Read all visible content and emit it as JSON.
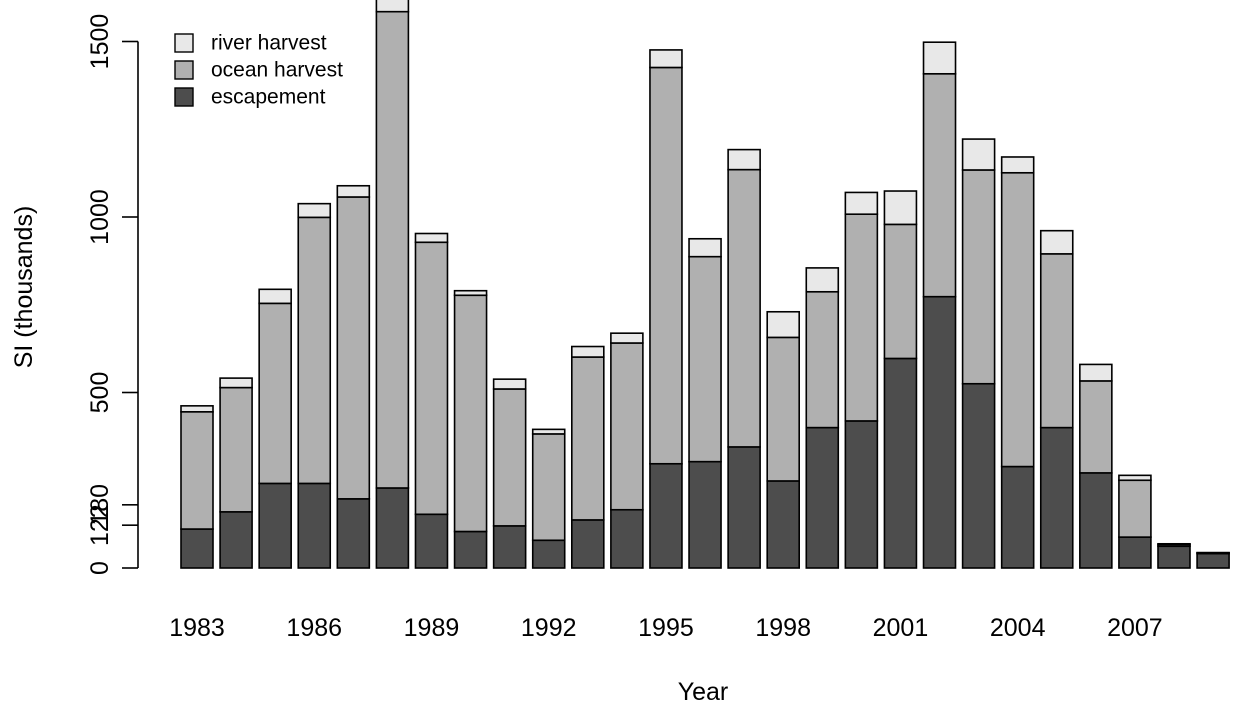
{
  "chart_data": {
    "type": "bar",
    "stacked": true,
    "x": [
      1983,
      1984,
      1985,
      1986,
      1987,
      1988,
      1989,
      1990,
      1991,
      1992,
      1993,
      1994,
      1995,
      1996,
      1997,
      1998,
      1999,
      2000,
      2001,
      2002,
      2003,
      2004,
      2005,
      2006,
      2007,
      2008,
      2009
    ],
    "x_tick_labels": [
      "1983",
      "1986",
      "1989",
      "1992",
      "1995",
      "1998",
      "2001",
      "2004",
      "2007"
    ],
    "y_tick_labels": [
      "0",
      "122",
      "180",
      "500",
      "1000",
      "1500"
    ],
    "y_ticks": [
      0,
      122,
      180,
      500,
      1000,
      1500
    ],
    "ylim": [
      0,
      1600
    ],
    "xlabel": "Year",
    "ylabel": "SI (thousands)",
    "title": "",
    "grid": false,
    "legend_position": "top-left",
    "series": [
      {
        "name": "escapement",
        "color": "#4d4d4d",
        "values": [
          111,
          160,
          241,
          241,
          197,
          228,
          153,
          104,
          120,
          79,
          137,
          166,
          297,
          303,
          345,
          248,
          400,
          419,
          597,
          773,
          525,
          289,
          400,
          271,
          88,
          62,
          41
        ]
      },
      {
        "name": "ocean harvest",
        "color": "#b0b0b0",
        "values": [
          334,
          354,
          513,
          758,
          860,
          1357,
          775,
          673,
          390,
          303,
          464,
          475,
          1129,
          584,
          790,
          409,
          387,
          589,
          382,
          635,
          609,
          837,
          495,
          262,
          162,
          5,
          2
        ]
      },
      {
        "name": "river harvest",
        "color": "#e8e8e8",
        "values": [
          17,
          27,
          40,
          39,
          32,
          42,
          25,
          13,
          28,
          13,
          30,
          28,
          50,
          51,
          57,
          73,
          68,
          62,
          95,
          90,
          88,
          45,
          66,
          47,
          14,
          2,
          1
        ]
      }
    ]
  }
}
